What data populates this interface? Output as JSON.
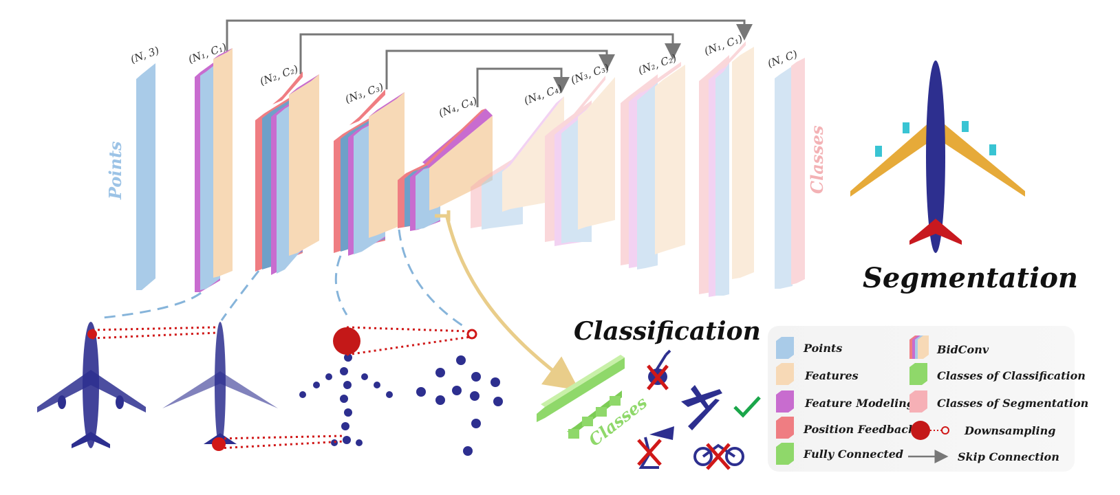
{
  "shape_labels": {
    "l0": "(N, 3)",
    "l1": "(N₁, C₁)",
    "l2": "(N₂, C₂)",
    "l3": "(N₃, C₃)",
    "l4": "(N₄, C₄)",
    "l5": "(N₄, C₄)",
    "l6": "(N₃, C₃)",
    "l7": "(N₂, C₂)",
    "l8": "(N₁, C₁)",
    "l9": "(N, C)"
  },
  "points_label": "Points",
  "classes_seg_label": "Classes",
  "classes_cls_label": "Classes",
  "segmentation_title": "Segmentation",
  "classification_title": "Classification",
  "legend": {
    "points": "Points",
    "features": "Features",
    "feature_modeling": "Feature Modeling",
    "position_feedback": "Position Feedback",
    "fully_connected": "Fully Connected",
    "bidconv": "BidConv",
    "classes_of_classification": "Classes of Classification",
    "classes_of_segmentation": "Classes of Segmentation",
    "downsampling": "Downsampling",
    "skip_connection": "Skip Connection"
  },
  "colors": {
    "points": "#a9cbe8",
    "features": "#f7d9b6",
    "feature_modeling": "#c86ccf",
    "position_feedback": "#ef7d82",
    "fully_connected": "#8fd86a",
    "classes_seg": "#f6b0b6",
    "point_cloud": "#2d2f8f",
    "downsample": "#d01818",
    "skip_arrow": "#777777",
    "check": "#1aa64a"
  }
}
